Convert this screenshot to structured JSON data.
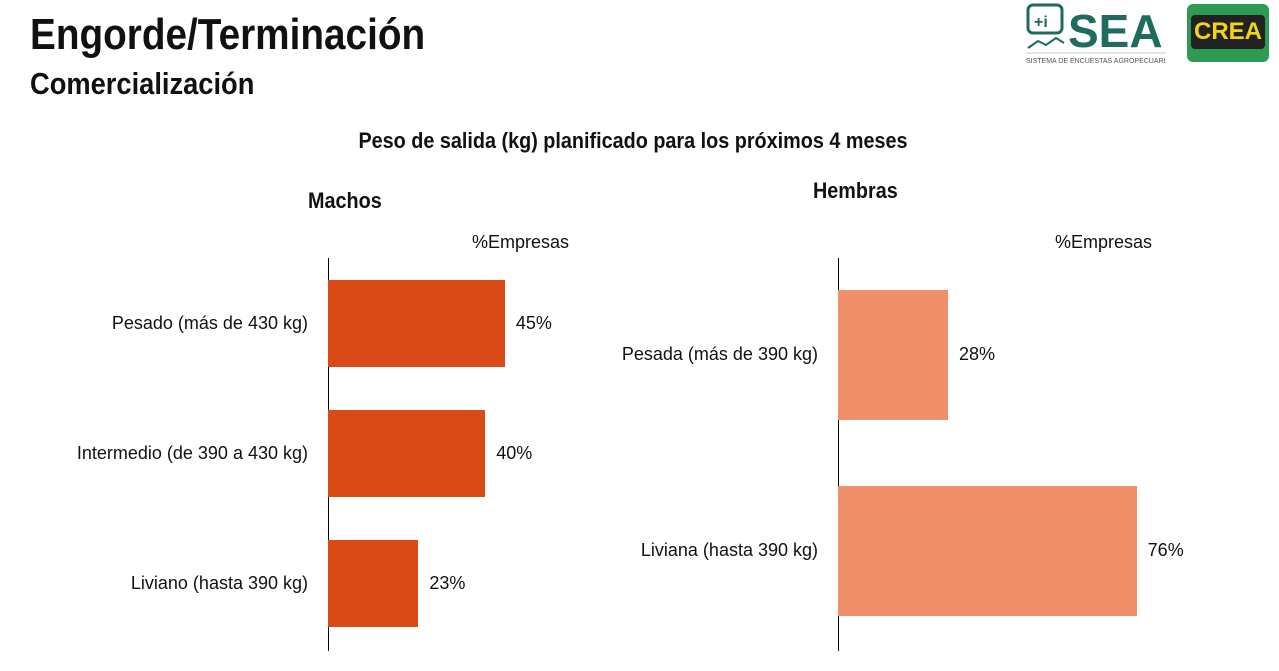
{
  "header": {
    "title": "Engorde/Terminación",
    "subtitle": "Comercialización",
    "logos": {
      "sea": "SEA",
      "sea_tagline": "SISTEMA DE ENCUESTAS AGROPECUARIAS",
      "crea": "CREA"
    }
  },
  "colors": {
    "machos": "#D94A16",
    "hembras": "#F0906A"
  },
  "chart_data": [
    {
      "type": "bar",
      "orientation": "horizontal",
      "title": "Peso de salida (kg) planificado para los próximos 4 meses",
      "panel": "Machos",
      "xlabel": "%Empresas",
      "categories": [
        "Pesado (más de 430 kg)",
        "Intermedio (de 390 a 430 kg)",
        "Liviano (hasta 390 kg)"
      ],
      "values": [
        45,
        40,
        23
      ],
      "labels": [
        "45%",
        "40%",
        "23%"
      ],
      "xlim": [
        0,
        100
      ]
    },
    {
      "type": "bar",
      "orientation": "horizontal",
      "title": "Peso de salida (kg) planificado para los próximos 4 meses",
      "panel": "Hembras",
      "xlabel": "%Empresas",
      "categories": [
        "Pesada (más de 390 kg)",
        "Liviana (hasta 390 kg)"
      ],
      "values": [
        28,
        76
      ],
      "labels": [
        "28%",
        "76%"
      ],
      "xlim": [
        0,
        100
      ]
    }
  ]
}
